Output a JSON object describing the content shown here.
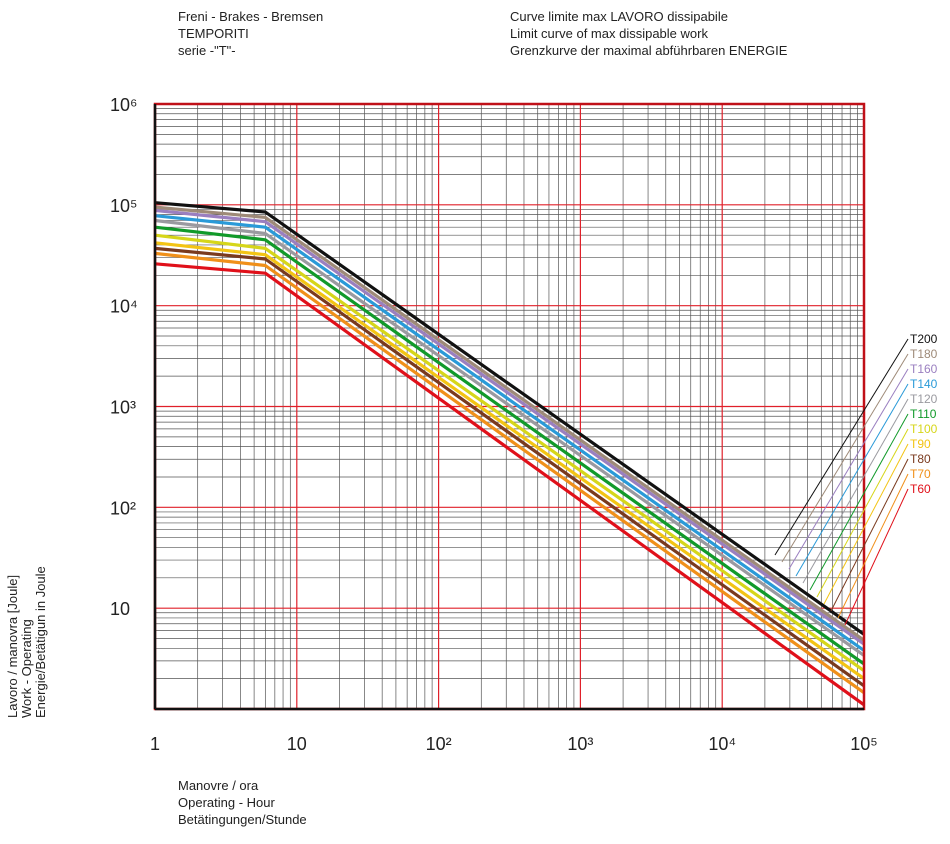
{
  "header": {
    "left": [
      "Freni - Brakes - Bremsen",
      "TEMPORITI",
      "serie -\"T\"-"
    ],
    "right": [
      "Curve limite max LAVORO dissipabile",
      "Limit curve of max dissipable work",
      "Grenzkurve der maximal abführbaren ENERGIE"
    ]
  },
  "chart_data": {
    "type": "line",
    "title": "",
    "xlabel": [
      "Manovre / ora",
      "Operating - Hour",
      "Betätingungen/Stunde"
    ],
    "ylabel": [
      "Lavoro / manovra [Joule]",
      "Work - Operating",
      "Energie/Betätigun in Joule"
    ],
    "x_scale": "log",
    "y_scale": "log",
    "xlim": [
      1,
      100000
    ],
    "ylim": [
      1,
      1000000
    ],
    "x_ticks": [
      {
        "value": 1,
        "label": "1"
      },
      {
        "value": 10,
        "label": "10"
      },
      {
        "value": 100,
        "label": "10²"
      },
      {
        "value": 1000,
        "label": "10³"
      },
      {
        "value": 10000,
        "label": "10⁴"
      },
      {
        "value": 100000,
        "label": "10⁵"
      }
    ],
    "y_ticks": [
      {
        "value": 10,
        "label": "10"
      },
      {
        "value": 100,
        "label": "10²"
      },
      {
        "value": 1000,
        "label": "10³"
      },
      {
        "value": 10000,
        "label": "10⁴"
      },
      {
        "value": 100000,
        "label": "10⁵"
      },
      {
        "value": 1000000,
        "label": "10⁶"
      }
    ],
    "grid": true,
    "legend_position": "right",
    "series": [
      {
        "name": "T200",
        "color": "#111111",
        "x": [
          1,
          6,
          100000
        ],
        "y": [
          105000,
          85000,
          5.5
        ]
      },
      {
        "name": "T180",
        "color": "#9e8a78",
        "x": [
          1,
          6,
          100000
        ],
        "y": [
          95000,
          75000,
          4.8
        ]
      },
      {
        "name": "T160",
        "color": "#9a7fc0",
        "x": [
          1,
          6,
          100000
        ],
        "y": [
          88000,
          68000,
          4.4
        ]
      },
      {
        "name": "T140",
        "color": "#2a9ad8",
        "x": [
          1,
          6,
          100000
        ],
        "y": [
          78000,
          60000,
          3.8
        ]
      },
      {
        "name": "T120",
        "color": "#9a9aa0",
        "x": [
          1,
          6,
          100000
        ],
        "y": [
          70000,
          52000,
          3.4
        ]
      },
      {
        "name": "T110",
        "color": "#119a2a",
        "x": [
          1,
          6,
          100000
        ],
        "y": [
          60000,
          45000,
          2.8
        ]
      },
      {
        "name": "T100",
        "color": "#d6d61a",
        "x": [
          1,
          6,
          100000
        ],
        "y": [
          50000,
          37000,
          2.4
        ]
      },
      {
        "name": "T90",
        "color": "#f3c414",
        "x": [
          1,
          6,
          100000
        ],
        "y": [
          42000,
          32000,
          2.0
        ]
      },
      {
        "name": "T80",
        "color": "#7a3a1e",
        "x": [
          1,
          6,
          100000
        ],
        "y": [
          37000,
          29000,
          1.7
        ]
      },
      {
        "name": "T70",
        "color": "#f0901a",
        "x": [
          1,
          6,
          100000
        ],
        "y": [
          33000,
          25000,
          1.45
        ]
      },
      {
        "name": "T60",
        "color": "#e0101a",
        "x": [
          1,
          6,
          100000
        ],
        "y": [
          26000,
          21000,
          1.1
        ]
      }
    ]
  }
}
